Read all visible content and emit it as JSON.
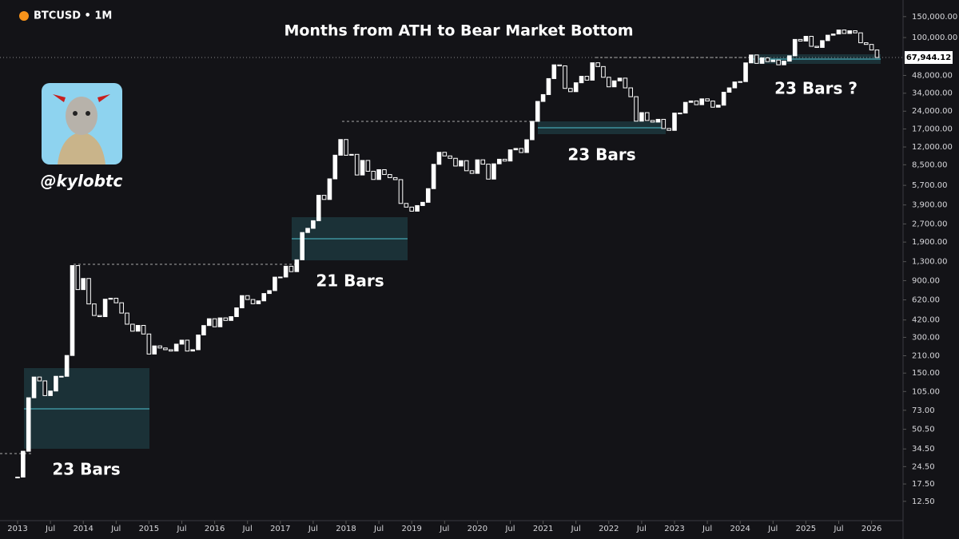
{
  "chart_data": {
    "type": "candlestick",
    "symbol": "BTCUSD • 1M",
    "title": "Months from ATH to Bear Market Bottom",
    "handle": "@kylobtc",
    "annotations": [
      "23 Bars",
      "21 Bars",
      "23 Bars",
      "23 Bars ?"
    ],
    "log_scale": true,
    "up_color": "#ffffff",
    "down_color": "#131317",
    "x": [
      "2013-01",
      "2013-02",
      "2013-03",
      "2013-04",
      "2013-05",
      "2013-06",
      "2013-07",
      "2013-08",
      "2013-09",
      "2013-10",
      "2013-11",
      "2013-12",
      "2014-01",
      "2014-02",
      "2014-03",
      "2014-04",
      "2014-05",
      "2014-06",
      "2014-07",
      "2014-08",
      "2014-09",
      "2014-10",
      "2014-11",
      "2014-12",
      "2015-01",
      "2015-02",
      "2015-03",
      "2015-04",
      "2015-05",
      "2015-06",
      "2015-07",
      "2015-08",
      "2015-09",
      "2015-10",
      "2015-11",
      "2015-12",
      "2016-01",
      "2016-02",
      "2016-03",
      "2016-04",
      "2016-05",
      "2016-06",
      "2016-07",
      "2016-08",
      "2016-09",
      "2016-10",
      "2016-11",
      "2016-12",
      "2017-01",
      "2017-02",
      "2017-03",
      "2017-04",
      "2017-05",
      "2017-06",
      "2017-07",
      "2017-08",
      "2017-09",
      "2017-10",
      "2017-11",
      "2017-12",
      "2018-01",
      "2018-02",
      "2018-03",
      "2018-04",
      "2018-05",
      "2018-06",
      "2018-07",
      "2018-08",
      "2018-09",
      "2018-10",
      "2018-11",
      "2018-12",
      "2019-01",
      "2019-02",
      "2019-03",
      "2019-04",
      "2019-05",
      "2019-06",
      "2019-07",
      "2019-08",
      "2019-09",
      "2019-10",
      "2019-11",
      "2019-12",
      "2020-01",
      "2020-02",
      "2020-03",
      "2020-04",
      "2020-05",
      "2020-06",
      "2020-07",
      "2020-08",
      "2020-09",
      "2020-10",
      "2020-11",
      "2020-12",
      "2021-01",
      "2021-02",
      "2021-03",
      "2021-04",
      "2021-05",
      "2021-06",
      "2021-07",
      "2021-08",
      "2021-09",
      "2021-10",
      "2021-11",
      "2021-12",
      "2022-01",
      "2022-02",
      "2022-03",
      "2022-04",
      "2022-05",
      "2022-06",
      "2022-07",
      "2022-08",
      "2022-09",
      "2022-10",
      "2022-11",
      "2022-12",
      "2023-01",
      "2023-02",
      "2023-03",
      "2023-04",
      "2023-05",
      "2023-06",
      "2023-07",
      "2023-08",
      "2023-09",
      "2023-10",
      "2023-11",
      "2023-12",
      "2024-01",
      "2024-02",
      "2024-03",
      "2024-04",
      "2024-05",
      "2024-06",
      "2024-07",
      "2024-08",
      "2024-09",
      "2024-10",
      "2024-11",
      "2024-12",
      "2025-01",
      "2025-02",
      "2025-03",
      "2025-04",
      "2025-05",
      "2025-06",
      "2025-07",
      "2025-08",
      "2025-09",
      "2025-10",
      "2025-11",
      "2025-12",
      "2026-01",
      "2026-02"
    ],
    "close": [
      20,
      33,
      93,
      139,
      129,
      97,
      106,
      141,
      141,
      211,
      1205,
      757,
      938,
      573,
      458,
      448,
      628,
      640,
      586,
      480,
      387,
      338,
      378,
      320,
      217,
      254,
      244,
      236,
      230,
      263,
      284,
      230,
      236,
      314,
      377,
      430,
      368,
      437,
      416,
      448,
      531,
      673,
      624,
      575,
      608,
      701,
      742,
      963,
      965,
      1190,
      1071,
      1348,
      2286,
      2480,
      2875,
      4703,
      4338,
      6468,
      10233,
      13860,
      10221,
      10397,
      6973,
      9240,
      7495,
      6390,
      7730,
      7037,
      6625,
      6371,
      4017,
      3742,
      3457,
      3854,
      4105,
      5350,
      8574,
      10817,
      10085,
      9630,
      8293,
      9199,
      7569,
      7193,
      9350,
      8599,
      6438,
      8658,
      9461,
      9138,
      11351,
      11655,
      10779,
      13805,
      19713,
      28990,
      33114,
      45137,
      58918,
      57750,
      37332,
      35040,
      41626,
      47166,
      43790,
      61318,
      57005,
      46306,
      38483,
      43193,
      45538,
      37714,
      31792,
      19784,
      23336,
      20050,
      19431,
      20495,
      17168,
      16548,
      23139,
      23147,
      28478,
      29268,
      27219,
      30477,
      29230,
      25931,
      26962,
      34667,
      37712,
      42265,
      42582,
      61198,
      71333,
      60636,
      67491,
      62678,
      64620,
      58970,
      63329,
      70215,
      96405,
      93429,
      102405,
      84374,
      82548,
      94207,
      104638,
      107135,
      115758,
      108236,
      114049,
      109556,
      90400,
      87500,
      78600,
      67944.12
    ],
    "ylim": [
      8.6,
      207000
    ],
    "yticks": [
      {
        "value": 12.5,
        "label": "12.50"
      },
      {
        "value": 17.5,
        "label": "17.50"
      },
      {
        "value": 24.5,
        "label": "24.50"
      },
      {
        "value": 34.5,
        "label": "34.50"
      },
      {
        "value": 50.5,
        "label": "50.50"
      },
      {
        "value": 73,
        "label": "73.00"
      },
      {
        "value": 105,
        "label": "105.00"
      },
      {
        "value": 150,
        "label": "150.00"
      },
      {
        "value": 210,
        "label": "210.00"
      },
      {
        "value": 300,
        "label": "300.00"
      },
      {
        "value": 420,
        "label": "420.00"
      },
      {
        "value": 620,
        "label": "620.00"
      },
      {
        "value": 900,
        "label": "900.00"
      },
      {
        "value": 1300,
        "label": "1,300.00"
      },
      {
        "value": 1900,
        "label": "1,900.00"
      },
      {
        "value": 2700,
        "label": "2,700.00"
      },
      {
        "value": 3900,
        "label": "3,900.00"
      },
      {
        "value": 5700,
        "label": "5,700.00"
      },
      {
        "value": 8500,
        "label": "8,500.00"
      },
      {
        "value": 12000,
        "label": "12,000.00"
      },
      {
        "value": 17000,
        "label": "17,000.00"
      },
      {
        "value": 24000,
        "label": "24,000.00"
      },
      {
        "value": 34000,
        "label": "34,000.00"
      },
      {
        "value": 48000,
        "label": "48,000.00"
      },
      {
        "value": 100000,
        "label": "100,000.00"
      },
      {
        "value": 150000,
        "label": "150,000.00"
      }
    ],
    "price_label": {
      "value": 67944.12,
      "label": "67,944.12"
    },
    "xticks": [
      {
        "value": "2013-01",
        "label": "2013"
      },
      {
        "value": "2013-07",
        "label": "Jul"
      },
      {
        "value": "2014-01",
        "label": "2014"
      },
      {
        "value": "2014-07",
        "label": "Jul"
      },
      {
        "value": "2015-01",
        "label": "2015"
      },
      {
        "value": "2015-07",
        "label": "Jul"
      },
      {
        "value": "2016-01",
        "label": "2016"
      },
      {
        "value": "2016-07",
        "label": "Jul"
      },
      {
        "value": "2017-01",
        "label": "2017"
      },
      {
        "value": "2017-07",
        "label": "Jul"
      },
      {
        "value": "2018-01",
        "label": "2018"
      },
      {
        "value": "2018-07",
        "label": "Jul"
      },
      {
        "value": "2019-01",
        "label": "2019"
      },
      {
        "value": "2019-07",
        "label": "Jul"
      },
      {
        "value": "2020-01",
        "label": "2020"
      },
      {
        "value": "2020-07",
        "label": "Jul"
      },
      {
        "value": "2021-01",
        "label": "2021"
      },
      {
        "value": "2021-07",
        "label": "Jul"
      },
      {
        "value": "2022-01",
        "label": "2022"
      },
      {
        "value": "2022-07",
        "label": "Jul"
      },
      {
        "value": "2023-01",
        "label": "2023"
      },
      {
        "value": "2023-07",
        "label": "Jul"
      },
      {
        "value": "2024-01",
        "label": "2024"
      },
      {
        "value": "2024-07",
        "label": "Jul"
      },
      {
        "value": "2025-01",
        "label": "2025"
      },
      {
        "value": "2025-07",
        "label": "Jul"
      },
      {
        "value": "2026-01",
        "label": "2026"
      }
    ]
  }
}
